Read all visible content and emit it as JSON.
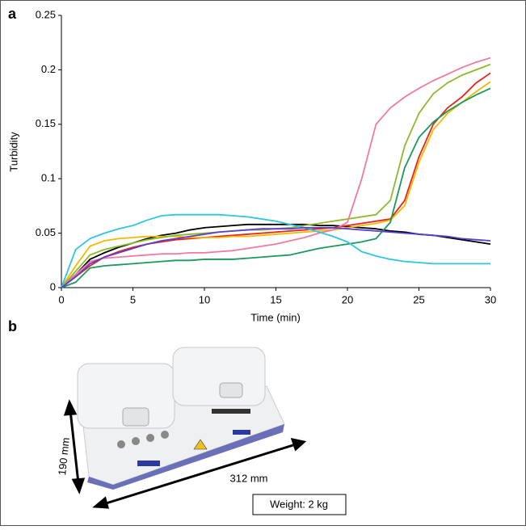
{
  "panel_labels": [
    "a",
    "b"
  ],
  "chart_data": {
    "type": "line",
    "xlabel": "Time (min)",
    "ylabel": "Turbidity",
    "x": [
      0,
      1,
      2,
      3,
      4,
      5,
      6,
      7,
      8,
      9,
      10,
      11,
      12,
      13,
      14,
      15,
      16,
      17,
      18,
      19,
      20,
      21,
      22,
      23,
      24,
      25,
      26,
      27,
      28,
      29,
      30
    ],
    "xlim": [
      0,
      30
    ],
    "xticks": [
      0,
      5,
      10,
      15,
      20,
      25,
      30
    ],
    "ylim": [
      0,
      0.25
    ],
    "yticks": [
      0,
      0.05,
      0.1,
      0.15,
      0.2,
      0.25
    ],
    "series": [
      {
        "color": "#000000",
        "values": [
          0,
          0.012,
          0.026,
          0.032,
          0.037,
          0.041,
          0.045,
          0.048,
          0.05,
          0.053,
          0.055,
          0.056,
          0.057,
          0.058,
          0.058,
          0.058,
          0.058,
          0.058,
          0.057,
          0.057,
          0.056,
          0.055,
          0.054,
          0.052,
          0.051,
          0.049,
          0.048,
          0.046,
          0.044,
          0.042,
          0.04
        ]
      },
      {
        "color": "#e8231c",
        "values": [
          0,
          0.01,
          0.02,
          0.028,
          0.033,
          0.037,
          0.04,
          0.042,
          0.044,
          0.045,
          0.046,
          0.047,
          0.048,
          0.049,
          0.05,
          0.051,
          0.052,
          0.053,
          0.054,
          0.055,
          0.057,
          0.059,
          0.061,
          0.063,
          0.08,
          0.12,
          0.15,
          0.165,
          0.175,
          0.188,
          0.197
        ]
      },
      {
        "color": "#f5b800",
        "values": [
          0,
          0.02,
          0.038,
          0.043,
          0.045,
          0.046,
          0.047,
          0.047,
          0.047,
          0.046,
          0.046,
          0.046,
          0.047,
          0.047,
          0.048,
          0.049,
          0.05,
          0.051,
          0.052,
          0.053,
          0.055,
          0.057,
          0.059,
          0.062,
          0.075,
          0.115,
          0.145,
          0.16,
          0.17,
          0.18,
          0.189
        ]
      },
      {
        "color": "#8db92c",
        "values": [
          0,
          0.015,
          0.03,
          0.035,
          0.038,
          0.041,
          0.044,
          0.046,
          0.048,
          0.049,
          0.05,
          0.051,
          0.052,
          0.053,
          0.053,
          0.054,
          0.055,
          0.057,
          0.059,
          0.061,
          0.063,
          0.065,
          0.067,
          0.08,
          0.13,
          0.16,
          0.178,
          0.188,
          0.195,
          0.2,
          0.205
        ]
      },
      {
        "color": "#1a9a5a",
        "values": [
          0,
          0.005,
          0.018,
          0.02,
          0.021,
          0.022,
          0.023,
          0.024,
          0.025,
          0.025,
          0.026,
          0.026,
          0.026,
          0.027,
          0.028,
          0.029,
          0.03,
          0.033,
          0.036,
          0.038,
          0.04,
          0.042,
          0.045,
          0.06,
          0.11,
          0.138,
          0.152,
          0.162,
          0.17,
          0.177,
          0.183
        ]
      },
      {
        "color": "#f07ba0",
        "values": [
          0,
          0.012,
          0.024,
          0.027,
          0.028,
          0.029,
          0.03,
          0.031,
          0.031,
          0.032,
          0.032,
          0.033,
          0.034,
          0.036,
          0.038,
          0.04,
          0.043,
          0.046,
          0.05,
          0.053,
          0.06,
          0.1,
          0.15,
          0.165,
          0.175,
          0.183,
          0.19,
          0.196,
          0.202,
          0.207,
          0.211
        ]
      },
      {
        "color": "#2ec6e0",
        "values": [
          0,
          0.035,
          0.045,
          0.05,
          0.054,
          0.057,
          0.062,
          0.066,
          0.067,
          0.067,
          0.067,
          0.067,
          0.066,
          0.065,
          0.063,
          0.061,
          0.058,
          0.055,
          0.051,
          0.047,
          0.042,
          0.033,
          0.029,
          0.026,
          0.024,
          0.023,
          0.022,
          0.022,
          0.022,
          0.022,
          0.022
        ]
      },
      {
        "color": "#5b3fd0",
        "values": [
          0,
          0.01,
          0.022,
          0.028,
          0.032,
          0.036,
          0.04,
          0.043,
          0.045,
          0.047,
          0.049,
          0.051,
          0.052,
          0.053,
          0.054,
          0.054,
          0.054,
          0.055,
          0.055,
          0.055,
          0.054,
          0.053,
          0.052,
          0.051,
          0.05,
          0.049,
          0.048,
          0.047,
          0.045,
          0.044,
          0.043
        ]
      }
    ]
  },
  "photo": {
    "height_label": "190 mm",
    "width_label": "312 mm",
    "weight_label": "Weight: 2 kg"
  }
}
